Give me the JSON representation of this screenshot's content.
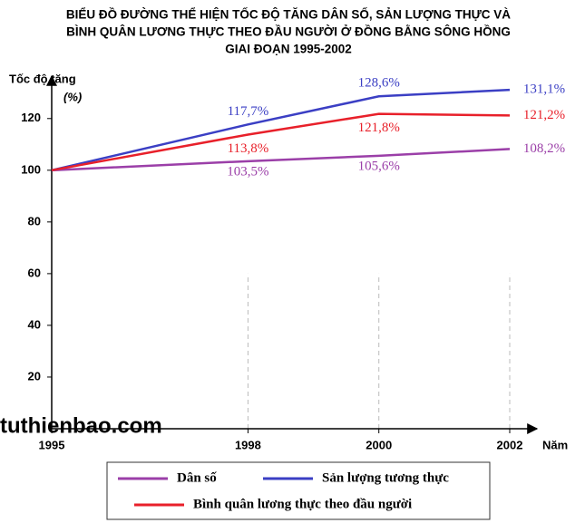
{
  "chart_data": {
    "type": "line",
    "title": [
      "BIỂU ĐỒ ĐƯỜNG THỂ HIỆN TỐC ĐỘ TĂNG DÂN SỐ, SẢN LƯỢNG THỰC VÀ",
      "BÌNH QUÂN LƯƠNG THỰC THEO ĐẦU NGƯỜI Ở ĐỒNG BẰNG SÔNG HỒNG",
      "GIAI ĐOẠN 1995-2002"
    ],
    "y_label": [
      "Tốc độ tăng",
      "(%)"
    ],
    "x_label": "Năm",
    "watermark": "tuthienbao.com",
    "x": [
      1995,
      1998,
      2000,
      2002
    ],
    "xlim": [
      1995,
      2002
    ],
    "xticks": [
      1995,
      1998,
      2000,
      2002
    ],
    "ylim": [
      0,
      135
    ],
    "yticks": [
      20,
      40,
      60,
      80,
      100,
      120
    ],
    "series": [
      {
        "name": "Dân số",
        "color": "#9b3fa8",
        "values": [
          100,
          103.5,
          105.6,
          108.2
        ],
        "value_labels": [
          null,
          "103,5%",
          "105,6%",
          "108,2%"
        ]
      },
      {
        "name": "Sản lượng tương thực",
        "color": "#3b3fc4",
        "values": [
          100,
          117.7,
          128.6,
          131.1
        ],
        "value_labels": [
          null,
          "117,7%",
          "128,6%",
          "131,1%"
        ]
      },
      {
        "name": "Bình quân lương thực theo đầu người",
        "color": "#e8202a",
        "values": [
          100,
          113.8,
          121.8,
          121.2
        ],
        "value_labels": [
          null,
          "113,8%",
          "121,8%",
          "121,2%"
        ]
      }
    ]
  }
}
